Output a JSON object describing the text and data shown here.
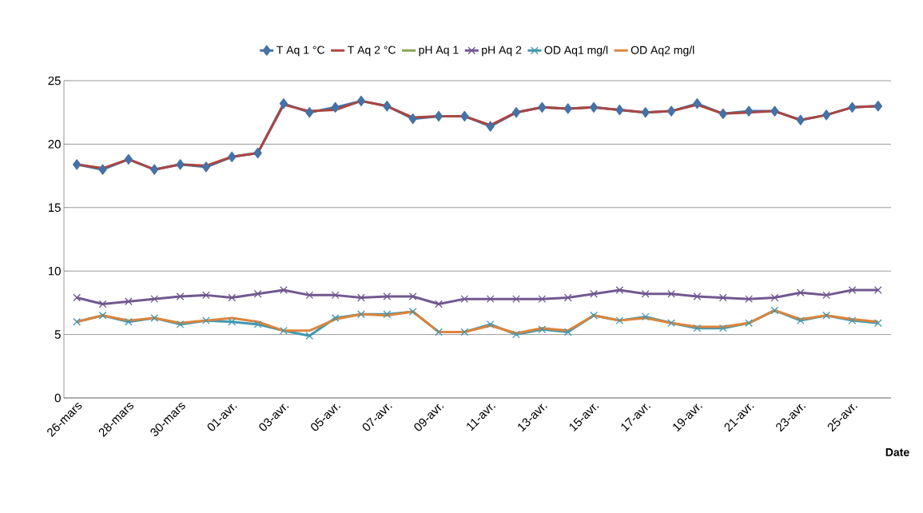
{
  "chart_data": {
    "type": "line",
    "xlabel": "Date",
    "categories": [
      "26-mars",
      null,
      "28-mars",
      null,
      "30-mars",
      null,
      "01-avr.",
      null,
      "03-avr.",
      null,
      "05-avr.",
      null,
      "07-avr.",
      null,
      "09-avr.",
      null,
      "11-avr.",
      null,
      "13-avr.",
      null,
      "15-avr.",
      null,
      "17-avr.",
      null,
      "19-avr.",
      null,
      "21-avr.",
      null,
      "23-avr.",
      null,
      "25-avr.",
      null
    ],
    "series": [
      {
        "name": "T Aq 1 °C",
        "color": "#4572a7",
        "marker": "diamond",
        "values": [
          18.4,
          18.0,
          18.8,
          18.0,
          18.4,
          18.2,
          19.0,
          19.3,
          23.2,
          22.5,
          22.9,
          23.4,
          23.0,
          22.0,
          22.2,
          22.2,
          21.4,
          22.5,
          22.9,
          22.8,
          22.9,
          22.7,
          22.5,
          22.6,
          23.2,
          22.4,
          22.6,
          22.6,
          21.9,
          22.3,
          22.9,
          23.0
        ]
      },
      {
        "name": "T Aq 2 °C",
        "color": "#aa4643",
        "marker": "none",
        "values": [
          18.4,
          18.1,
          18.8,
          18.0,
          18.4,
          18.3,
          19.0,
          19.3,
          23.1,
          22.6,
          22.7,
          23.4,
          23.0,
          22.1,
          22.2,
          22.2,
          21.5,
          22.5,
          22.9,
          22.8,
          22.9,
          22.7,
          22.5,
          22.6,
          23.1,
          22.4,
          22.5,
          22.6,
          21.9,
          22.3,
          22.9,
          23.0
        ]
      },
      {
        "name": "pH Aq 1",
        "color": "#89a54e",
        "marker": "none",
        "values": [
          null,
          null,
          null,
          null,
          null,
          null,
          null,
          null,
          null,
          null,
          null,
          null,
          null,
          null,
          null,
          null,
          null,
          null,
          null,
          null,
          null,
          null,
          null,
          null,
          null,
          null,
          null,
          null,
          null,
          null,
          null,
          null
        ]
      },
      {
        "name": "pH Aq 2",
        "color": "#71588f",
        "marker": "cross",
        "values": [
          7.9,
          7.4,
          7.6,
          7.8,
          8.0,
          8.1,
          7.9,
          8.2,
          8.5,
          8.1,
          8.1,
          7.9,
          8.0,
          8.0,
          7.4,
          7.8,
          7.8,
          7.8,
          7.8,
          7.9,
          8.2,
          8.5,
          8.2,
          8.2,
          8.0,
          7.9,
          7.8,
          7.9,
          8.3,
          8.1,
          8.5,
          8.5
        ]
      },
      {
        "name": "OD Aq1 mg/l",
        "color": "#4198af",
        "marker": "cross",
        "values": [
          6.0,
          6.5,
          6.0,
          6.3,
          5.8,
          6.1,
          6.0,
          5.8,
          5.3,
          4.9,
          6.3,
          6.6,
          6.6,
          6.8,
          5.2,
          5.2,
          5.8,
          5.0,
          5.4,
          5.2,
          6.5,
          6.1,
          6.4,
          5.9,
          5.5,
          5.5,
          5.9,
          6.9,
          6.1,
          6.5,
          6.1,
          5.9
        ]
      },
      {
        "name": "OD Aq2 mg/l",
        "color": "#db843d",
        "marker": "none",
        "values": [
          6.0,
          6.5,
          6.1,
          6.3,
          5.9,
          6.1,
          6.3,
          6.0,
          5.3,
          5.3,
          6.2,
          6.6,
          6.5,
          6.8,
          5.2,
          5.2,
          5.7,
          5.1,
          5.5,
          5.3,
          6.5,
          6.1,
          6.3,
          5.9,
          5.6,
          5.6,
          5.9,
          6.9,
          6.2,
          6.5,
          6.2,
          6.0
        ]
      }
    ],
    "ylim": [
      0,
      25
    ],
    "yticks": [
      0,
      5,
      10,
      15,
      20,
      25
    ],
    "grid": "y",
    "legend": "top",
    "line_style": "solid"
  }
}
